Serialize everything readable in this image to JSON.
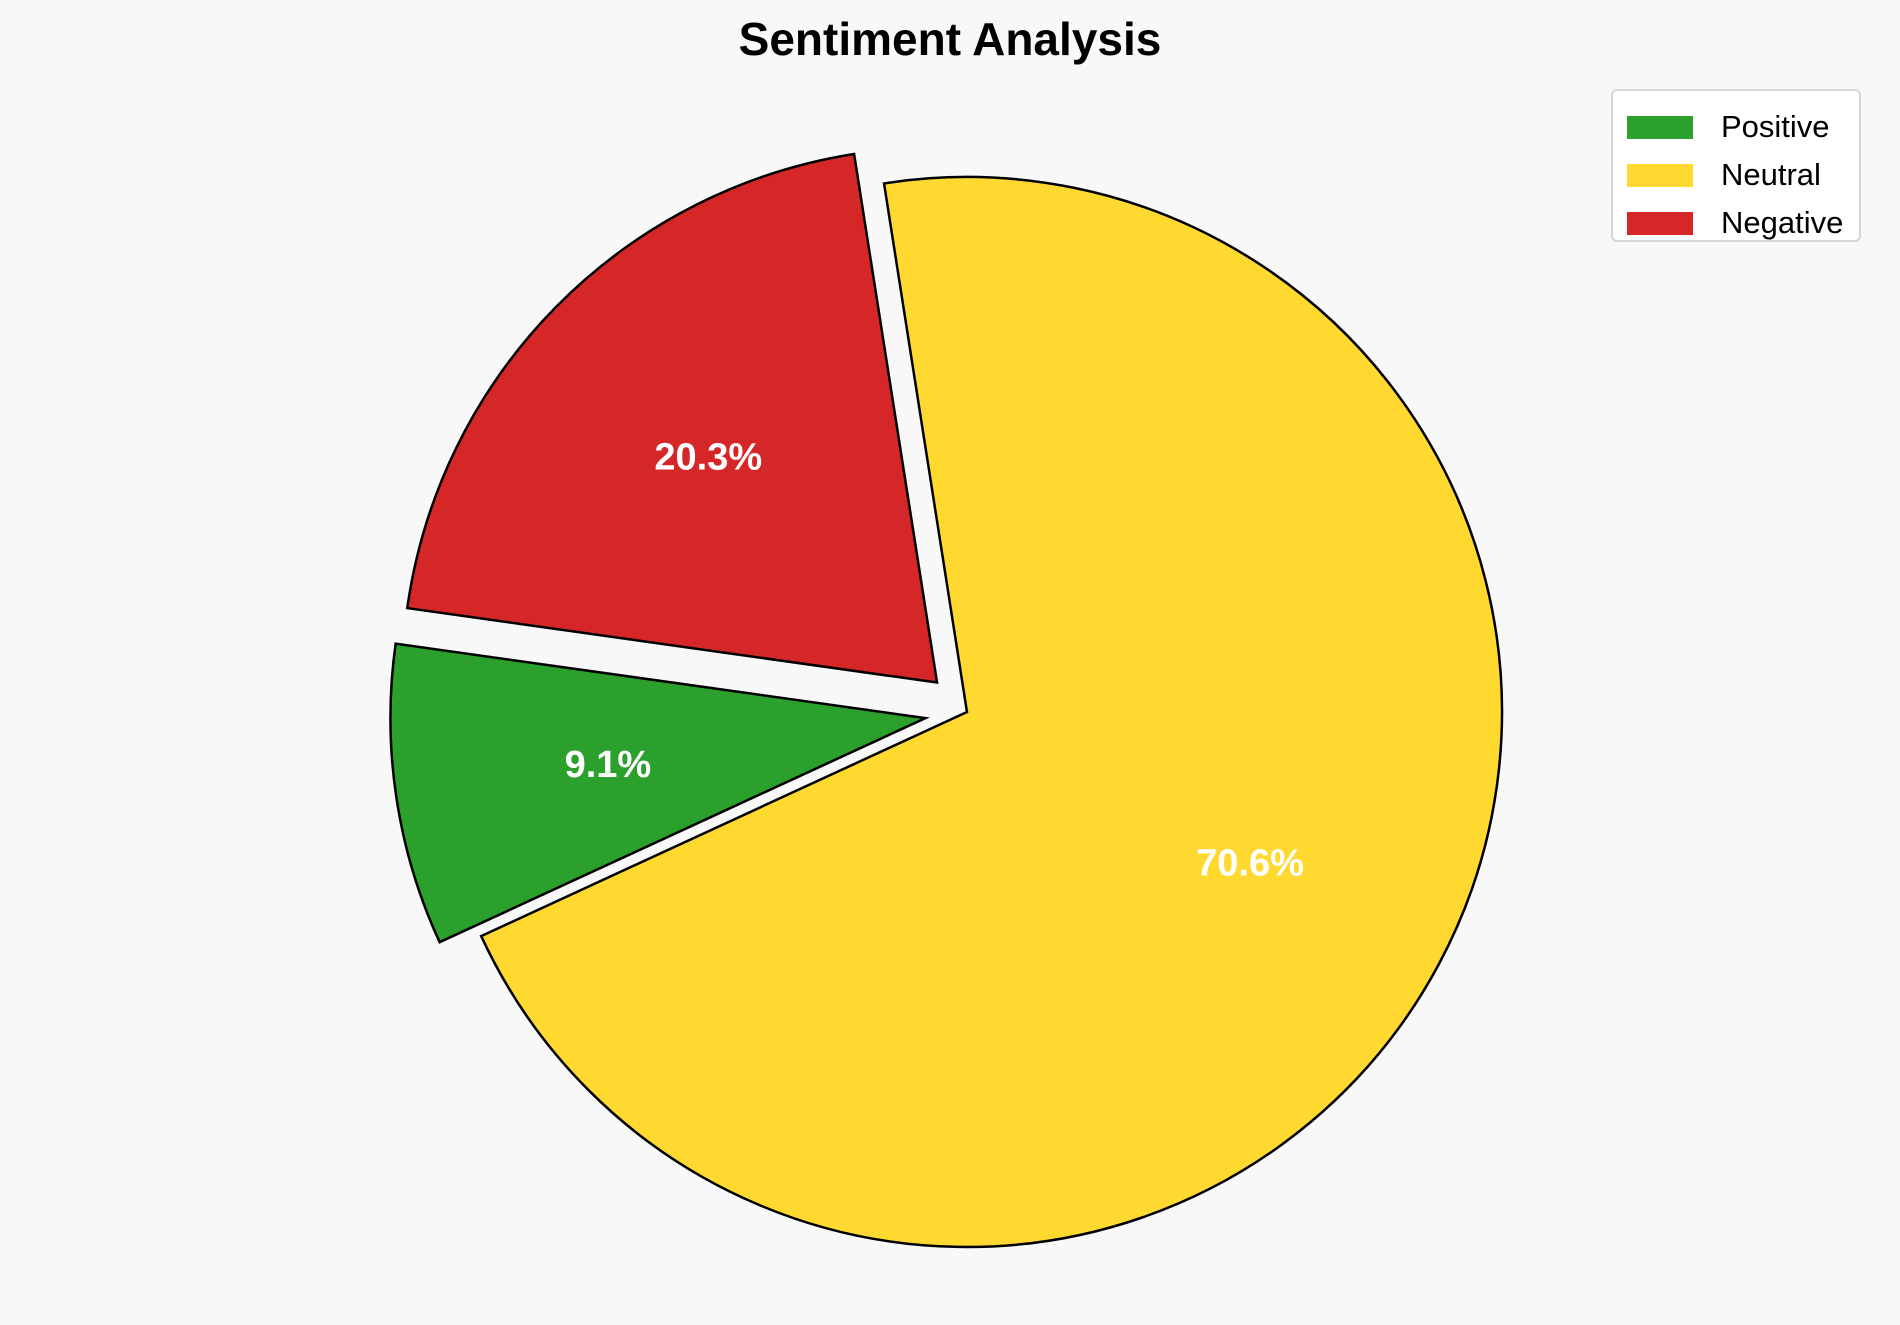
{
  "chart_data": {
    "type": "pie",
    "title": "Sentiment Analysis",
    "categories": [
      "Positive",
      "Neutral",
      "Negative"
    ],
    "values": [
      9.1,
      70.6,
      20.3
    ],
    "value_labels": [
      "9.1%",
      "70.6%",
      "20.3%"
    ],
    "colors": [
      "#2ca02c",
      "#ffd92f",
      "#d62728"
    ],
    "exploded": [
      true,
      false,
      true
    ],
    "start_angle_deg": 172,
    "direction": "counterclockwise",
    "legend": {
      "placement": "top-right",
      "entries": [
        "Positive",
        "Neutral",
        "Negative"
      ]
    }
  }
}
